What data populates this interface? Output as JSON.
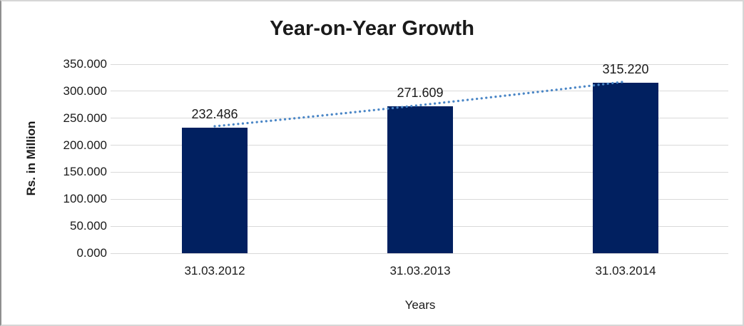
{
  "chart_data": {
    "type": "bar",
    "title": "Year-on-Year Growth",
    "xlabel": "Years",
    "ylabel": "Rs. in Million",
    "categories": [
      "31.03.2012",
      "31.03.2013",
      "31.03.2014"
    ],
    "values": [
      232.486,
      271.609,
      315.22
    ],
    "data_labels": [
      "232.486",
      "271.609",
      "315.220"
    ],
    "ylim": [
      0,
      350
    ],
    "ytick_step": 50,
    "ytick_labels": [
      "0.000",
      "50.000",
      "100.000",
      "150.000",
      "200.000",
      "250.000",
      "300.000",
      "350.000"
    ],
    "grid": "horizontal",
    "legend": "none",
    "bar_color": "#012060",
    "trendline": {
      "style": "dotted",
      "color": "#4a86c6"
    },
    "gridline_color": "#d9d9d9",
    "text_color": "#1a1a1a"
  }
}
